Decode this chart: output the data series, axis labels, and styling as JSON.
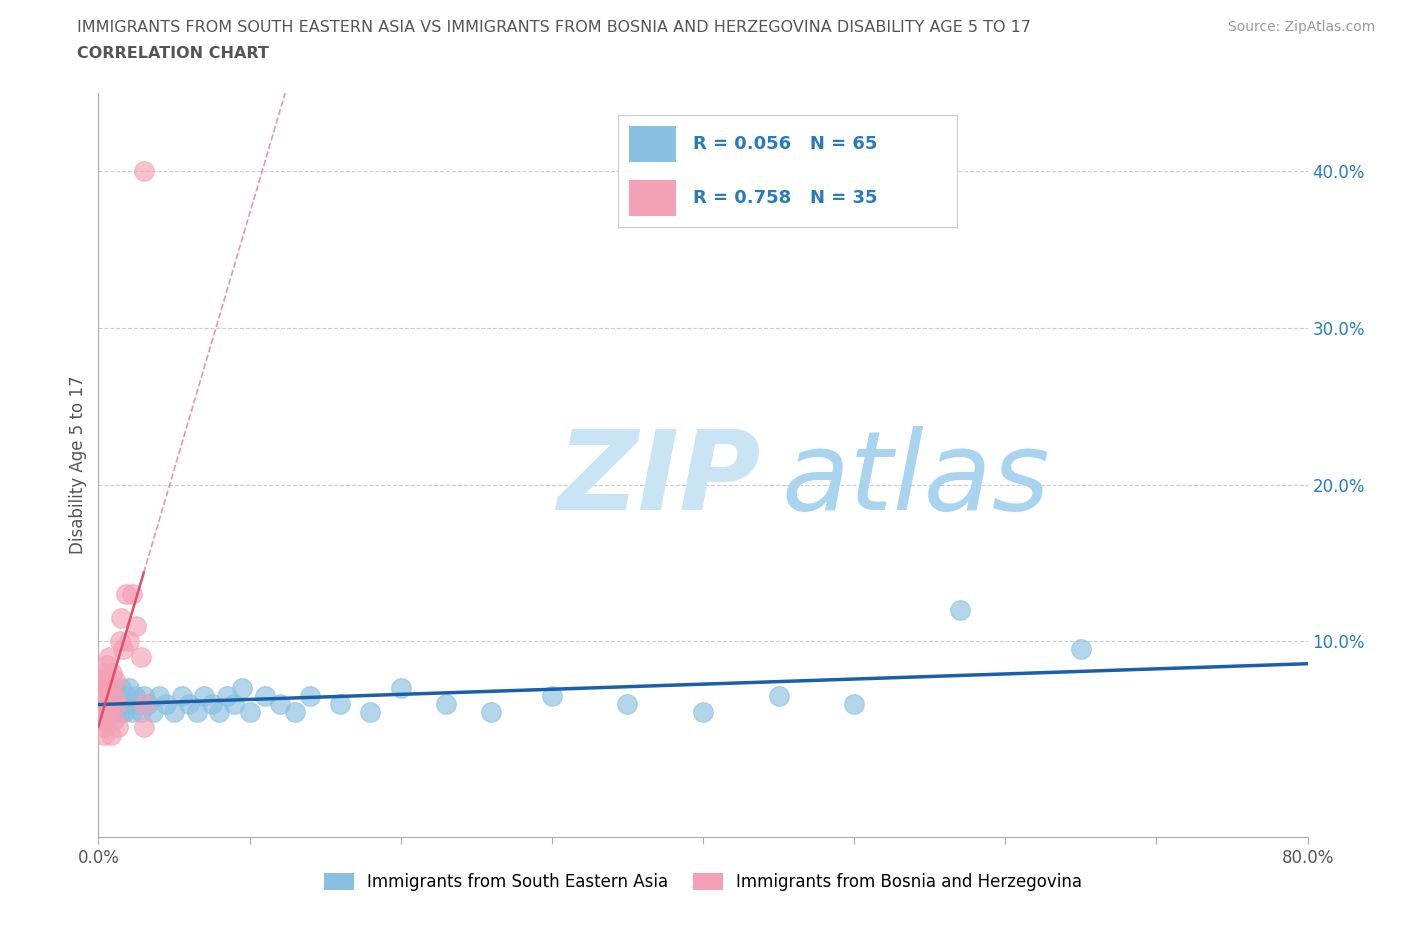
{
  "title_line1": "IMMIGRANTS FROM SOUTH EASTERN ASIA VS IMMIGRANTS FROM BOSNIA AND HERZEGOVINA DISABILITY AGE 5 TO 17",
  "title_line2": "CORRELATION CHART",
  "source_text": "Source: ZipAtlas.com",
  "ylabel": "Disability Age 5 to 17",
  "xlim": [
    0.0,
    0.8
  ],
  "ylim": [
    -0.025,
    0.45
  ],
  "xticks": [
    0.0,
    0.1,
    0.2,
    0.3,
    0.4,
    0.5,
    0.6,
    0.7,
    0.8
  ],
  "xticklabels": [
    "0.0%",
    "",
    "",
    "",
    "",
    "",
    "",
    "",
    "80.0%"
  ],
  "yticks": [
    0.0,
    0.1,
    0.2,
    0.3,
    0.4
  ],
  "yticklabels": [
    "",
    "10.0%",
    "20.0%",
    "30.0%",
    "40.0%"
  ],
  "color_blue": "#89bfe0",
  "color_pink": "#f4a0b5",
  "trendline_blue": "#1a5fa8",
  "trendline_pink": "#d94f6e",
  "title_color": "#555555",
  "source_color": "#999999",
  "watermark_zip_color": "#c8e4f5",
  "watermark_atlas_color": "#a8d4ef",
  "R_blue": 0.056,
  "N_blue": 65,
  "R_pink": 0.758,
  "N_pink": 35,
  "legend_label_blue": "Immigrants from South Eastern Asia",
  "legend_label_pink": "Immigrants from Bosnia and Herzegovina",
  "scatter_blue_x": [
    0.001,
    0.001,
    0.002,
    0.002,
    0.003,
    0.003,
    0.004,
    0.004,
    0.005,
    0.005,
    0.006,
    0.006,
    0.007,
    0.007,
    0.008,
    0.008,
    0.009,
    0.01,
    0.01,
    0.011,
    0.012,
    0.013,
    0.014,
    0.015,
    0.016,
    0.017,
    0.018,
    0.019,
    0.02,
    0.022,
    0.024,
    0.026,
    0.028,
    0.03,
    0.033,
    0.036,
    0.04,
    0.045,
    0.05,
    0.055,
    0.06,
    0.065,
    0.07,
    0.075,
    0.08,
    0.085,
    0.09,
    0.095,
    0.1,
    0.11,
    0.12,
    0.13,
    0.14,
    0.16,
    0.18,
    0.2,
    0.23,
    0.26,
    0.3,
    0.35,
    0.4,
    0.45,
    0.5,
    0.57,
    0.65
  ],
  "scatter_blue_y": [
    0.075,
    0.06,
    0.065,
    0.055,
    0.07,
    0.05,
    0.065,
    0.06,
    0.055,
    0.07,
    0.06,
    0.065,
    0.055,
    0.07,
    0.06,
    0.055,
    0.065,
    0.06,
    0.07,
    0.055,
    0.065,
    0.06,
    0.055,
    0.07,
    0.06,
    0.055,
    0.065,
    0.06,
    0.07,
    0.055,
    0.065,
    0.06,
    0.055,
    0.065,
    0.06,
    0.055,
    0.065,
    0.06,
    0.055,
    0.065,
    0.06,
    0.055,
    0.065,
    0.06,
    0.055,
    0.065,
    0.06,
    0.07,
    0.055,
    0.065,
    0.06,
    0.055,
    0.065,
    0.06,
    0.055,
    0.07,
    0.06,
    0.055,
    0.065,
    0.06,
    0.055,
    0.065,
    0.06,
    0.12,
    0.095
  ],
  "scatter_pink_x": [
    0.001,
    0.001,
    0.002,
    0.002,
    0.003,
    0.003,
    0.003,
    0.004,
    0.004,
    0.004,
    0.005,
    0.005,
    0.006,
    0.006,
    0.007,
    0.007,
    0.008,
    0.008,
    0.009,
    0.01,
    0.01,
    0.011,
    0.012,
    0.013,
    0.014,
    0.015,
    0.016,
    0.018,
    0.02,
    0.022,
    0.025,
    0.028,
    0.03,
    0.03,
    0.03
  ],
  "scatter_pink_y": [
    0.05,
    0.06,
    0.065,
    0.075,
    0.055,
    0.07,
    0.08,
    0.045,
    0.065,
    0.04,
    0.075,
    0.05,
    0.085,
    0.06,
    0.09,
    0.055,
    0.07,
    0.04,
    0.08,
    0.065,
    0.05,
    0.075,
    0.06,
    0.045,
    0.1,
    0.115,
    0.095,
    0.13,
    0.1,
    0.13,
    0.11,
    0.09,
    0.06,
    0.045,
    0.4
  ],
  "grid_color": "#cccccc",
  "bg_color": "#ffffff",
  "legend_R_N_color": "#2b7bba",
  "legend_box_edge_color": "#cccccc"
}
